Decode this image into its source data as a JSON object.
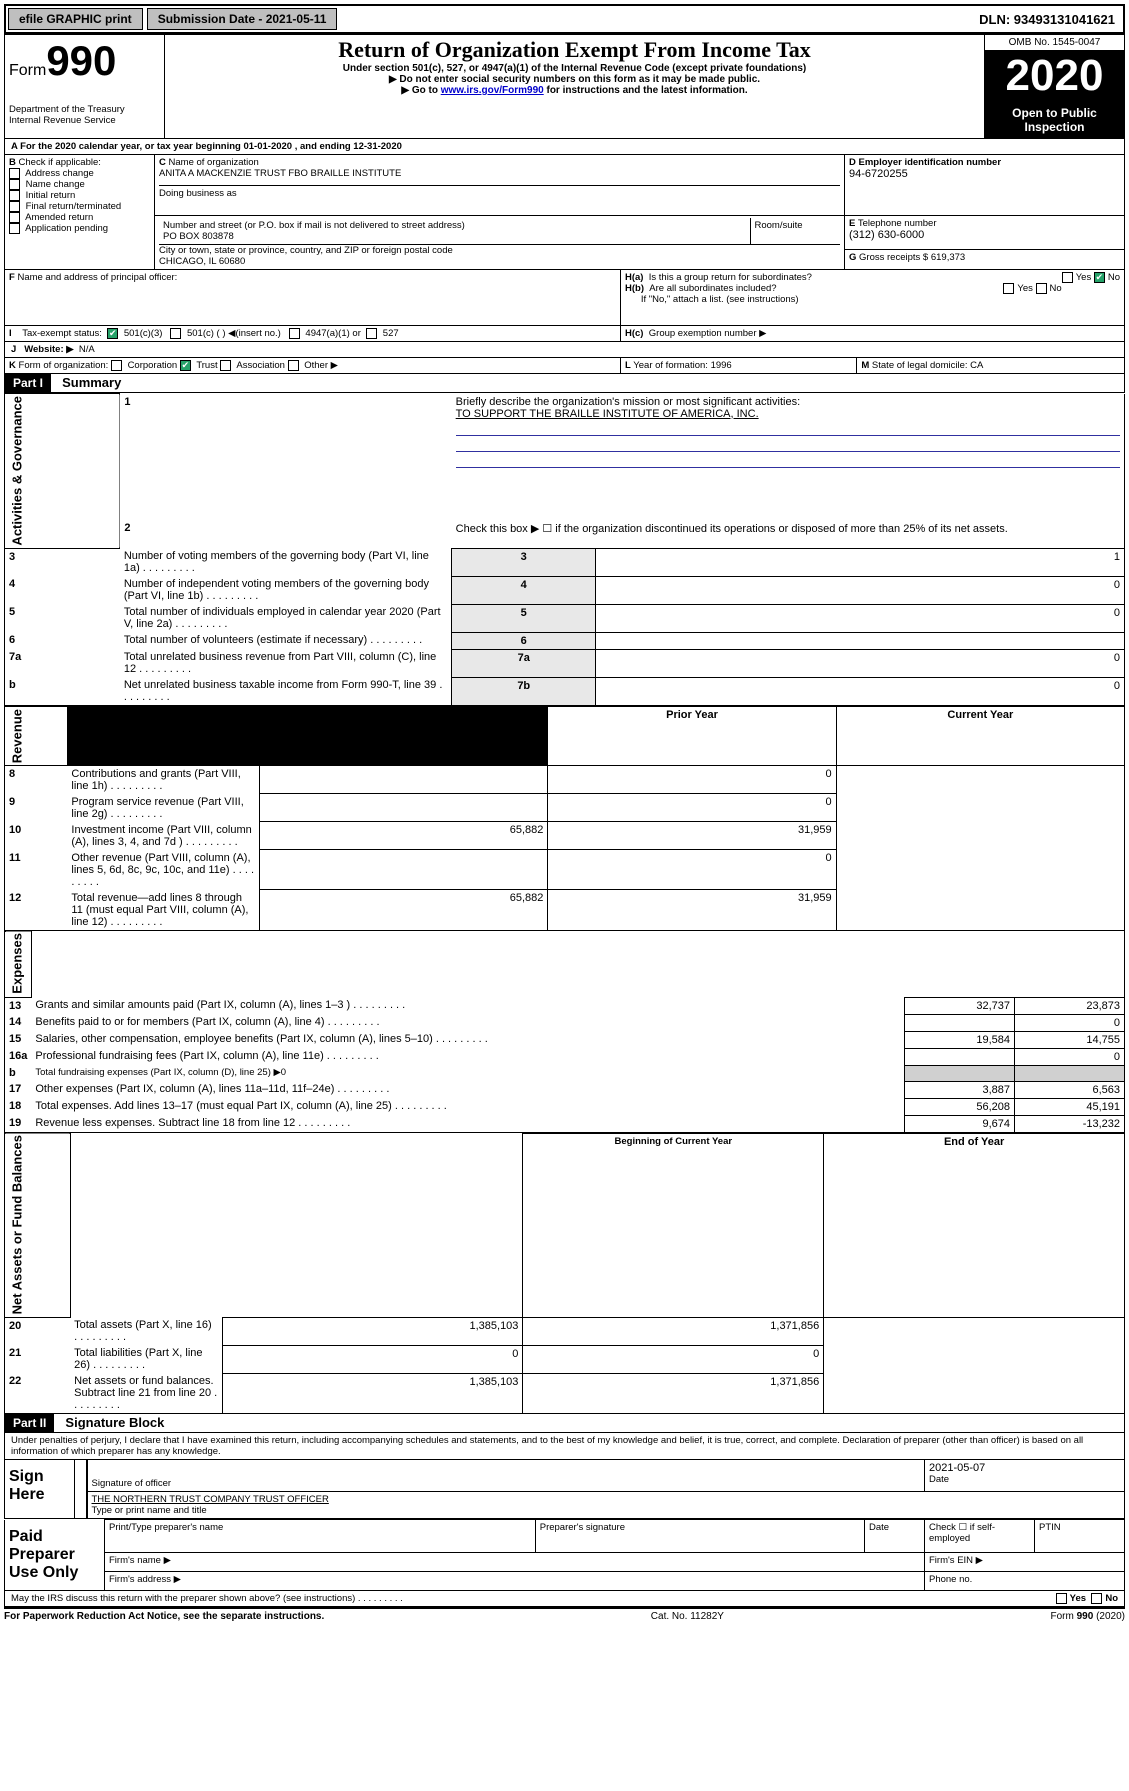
{
  "top": {
    "efile_btn": "efile GRAPHIC print",
    "submission_label": "Submission Date - 2021-05-11",
    "dln": "DLN: 93493131041621"
  },
  "header": {
    "form_prefix": "Form",
    "form_no": "990",
    "dept": "Department of the Treasury\nInternal Revenue Service",
    "title": "Return of Organization Exempt From Income Tax",
    "line1": "Under section 501(c), 527, or 4947(a)(1) of the Internal Revenue Code (except private foundations)",
    "line2": "▶ Do not enter social security numbers on this form as it may be made public.",
    "line3_pre": "▶ Go to ",
    "line3_link": "www.irs.gov/Form990",
    "line3_post": " for instructions and the latest information.",
    "omb": "OMB No. 1545-0047",
    "year": "2020",
    "open": "Open to Public Inspection"
  },
  "A": {
    "text": "For the 2020 calendar year, or tax year beginning 01-01-2020   , and ending 12-31-2020"
  },
  "B": {
    "label": "Check if applicable:",
    "opts": [
      "Address change",
      "Name change",
      "Initial return",
      "Final return/terminated",
      "Amended return",
      "Application pending"
    ]
  },
  "C": {
    "name_lbl": "Name of organization",
    "name": "ANITA A MACKENZIE TRUST FBO BRAILLE INSTITUTE",
    "dba_lbl": "Doing business as",
    "street_lbl": "Number and street (or P.O. box if mail is not delivered to street address)",
    "room_lbl": "Room/suite",
    "street": "PO BOX 803878",
    "city_lbl": "City or town, state or province, country, and ZIP or foreign postal code",
    "city": "CHICAGO, IL  60680"
  },
  "D": {
    "lbl": "Employer identification number",
    "val": "94-6720255"
  },
  "E": {
    "lbl": "Telephone number",
    "val": "(312) 630-6000"
  },
  "G": {
    "lbl": "Gross receipts $",
    "val": "619,373"
  },
  "F": {
    "lbl": "Name and address of principal officer:"
  },
  "H": {
    "a": "Is this a group return for subordinates?",
    "b": "Are all subordinates included?",
    "b_note": "If \"No,\" attach a list. (see instructions)",
    "c": "Group exemption number ▶",
    "yes": "Yes",
    "no": "No"
  },
  "I": {
    "lbl": "Tax-exempt status:",
    "o1": "501(c)(3)",
    "o2": "501(c) (   ) ◀(insert no.)",
    "o3": "4947(a)(1) or",
    "o4": "527"
  },
  "J": {
    "lbl": "Website: ▶",
    "val": "N/A"
  },
  "K": {
    "lbl": "Form of organization:",
    "o1": "Corporation",
    "o2": "Trust",
    "o3": "Association",
    "o4": "Other ▶"
  },
  "L": {
    "lbl": "Year of formation:",
    "val": "1996"
  },
  "M": {
    "lbl": "State of legal domicile:",
    "val": "CA"
  },
  "part1": {
    "hdr": "Part I",
    "title": "Summary",
    "l1": "Briefly describe the organization's mission or most significant activities:",
    "l1ans": "TO SUPPORT THE BRAILLE INSTITUTE OF AMERICA, INC.",
    "l2": "Check this box ▶ ☐  if the organization discontinued its operations or disposed of more than 25% of its net assets.",
    "rows_ag": [
      {
        "n": "3",
        "t": "Number of voting members of the governing body (Part VI, line 1a)",
        "box": "3",
        "val": "1"
      },
      {
        "n": "4",
        "t": "Number of independent voting members of the governing body (Part VI, line 1b)",
        "box": "4",
        "val": "0"
      },
      {
        "n": "5",
        "t": "Total number of individuals employed in calendar year 2020 (Part V, line 2a)",
        "box": "5",
        "val": "0"
      },
      {
        "n": "6",
        "t": "Total number of volunteers (estimate if necessary)",
        "box": "6",
        "val": ""
      },
      {
        "n": "7a",
        "t": "Total unrelated business revenue from Part VIII, column (C), line 12",
        "box": "7a",
        "val": "0"
      },
      {
        "n": "b",
        "t": "Net unrelated business taxable income from Form 990-T, line 39",
        "box": "7b",
        "val": "0"
      }
    ],
    "col_prior": "Prior Year",
    "col_curr": "Current Year",
    "rev": [
      {
        "n": "8",
        "t": "Contributions and grants (Part VIII, line 1h)",
        "p": "",
        "c": "0"
      },
      {
        "n": "9",
        "t": "Program service revenue (Part VIII, line 2g)",
        "p": "",
        "c": "0"
      },
      {
        "n": "10",
        "t": "Investment income (Part VIII, column (A), lines 3, 4, and 7d )",
        "p": "65,882",
        "c": "31,959"
      },
      {
        "n": "11",
        "t": "Other revenue (Part VIII, column (A), lines 5, 6d, 8c, 9c, 10c, and 11e)",
        "p": "",
        "c": "0"
      },
      {
        "n": "12",
        "t": "Total revenue—add lines 8 through 11 (must equal Part VIII, column (A), line 12)",
        "p": "65,882",
        "c": "31,959"
      }
    ],
    "exp": [
      {
        "n": "13",
        "t": "Grants and similar amounts paid (Part IX, column (A), lines 1–3 )",
        "p": "32,737",
        "c": "23,873"
      },
      {
        "n": "14",
        "t": "Benefits paid to or for members (Part IX, column (A), line 4)",
        "p": "",
        "c": "0"
      },
      {
        "n": "15",
        "t": "Salaries, other compensation, employee benefits (Part IX, column (A), lines 5–10)",
        "p": "19,584",
        "c": "14,755"
      },
      {
        "n": "16a",
        "t": "Professional fundraising fees (Part IX, column (A), line 11e)",
        "p": "",
        "c": "0"
      },
      {
        "n": "b",
        "t": "Total fundraising expenses (Part IX, column (D), line 25) ▶0",
        "p": null,
        "c": null
      },
      {
        "n": "17",
        "t": "Other expenses (Part IX, column (A), lines 11a–11d, 11f–24e)",
        "p": "3,887",
        "c": "6,563"
      },
      {
        "n": "18",
        "t": "Total expenses. Add lines 13–17 (must equal Part IX, column (A), line 25)",
        "p": "56,208",
        "c": "45,191"
      },
      {
        "n": "19",
        "t": "Revenue less expenses. Subtract line 18 from line 12",
        "p": "9,674",
        "c": "-13,232"
      }
    ],
    "col_begin": "Beginning of Current Year",
    "col_end": "End of Year",
    "net": [
      {
        "n": "20",
        "t": "Total assets (Part X, line 16)",
        "p": "1,385,103",
        "c": "1,371,856"
      },
      {
        "n": "21",
        "t": "Total liabilities (Part X, line 26)",
        "p": "0",
        "c": "0"
      },
      {
        "n": "22",
        "t": "Net assets or fund balances. Subtract line 21 from line 20",
        "p": "1,385,103",
        "c": "1,371,856"
      }
    ]
  },
  "part2": {
    "hdr": "Part II",
    "title": "Signature Block",
    "perjury": "Under penalties of perjury, I declare that I have examined this return, including accompanying schedules and statements, and to the best of my knowledge and belief, it is true, correct, and complete. Declaration of preparer (other than officer) is based on all information of which preparer has any knowledge.",
    "sign_here": "Sign Here",
    "sig_of_officer": "Signature of officer",
    "date": "2021-05-07",
    "date_lbl": "Date",
    "officer_name": "THE NORTHERN TRUST COMPANY  TRUST OFFICER",
    "type_name": "Type or print name and title",
    "paid": "Paid Preparer Use Only",
    "ptp": "Print/Type preparer's name",
    "psig": "Preparer's signature",
    "pdate": "Date",
    "pcheck": "Check ☐ if self-employed",
    "ptin": "PTIN",
    "firm_name": "Firm's name  ▶",
    "firm_ein": "Firm's EIN ▶",
    "firm_addr": "Firm's address ▶",
    "phone": "Phone no.",
    "discuss": "May the IRS discuss this return with the preparer shown above? (see instructions)",
    "pra": "For Paperwork Reduction Act Notice, see the separate instructions.",
    "cat": "Cat. No. 11282Y",
    "formv": "Form 990 (2020)"
  },
  "vlabels": {
    "ag": "Activities & Governance",
    "rev": "Revenue",
    "exp": "Expenses",
    "net": "Net Assets or Fund Balances"
  }
}
